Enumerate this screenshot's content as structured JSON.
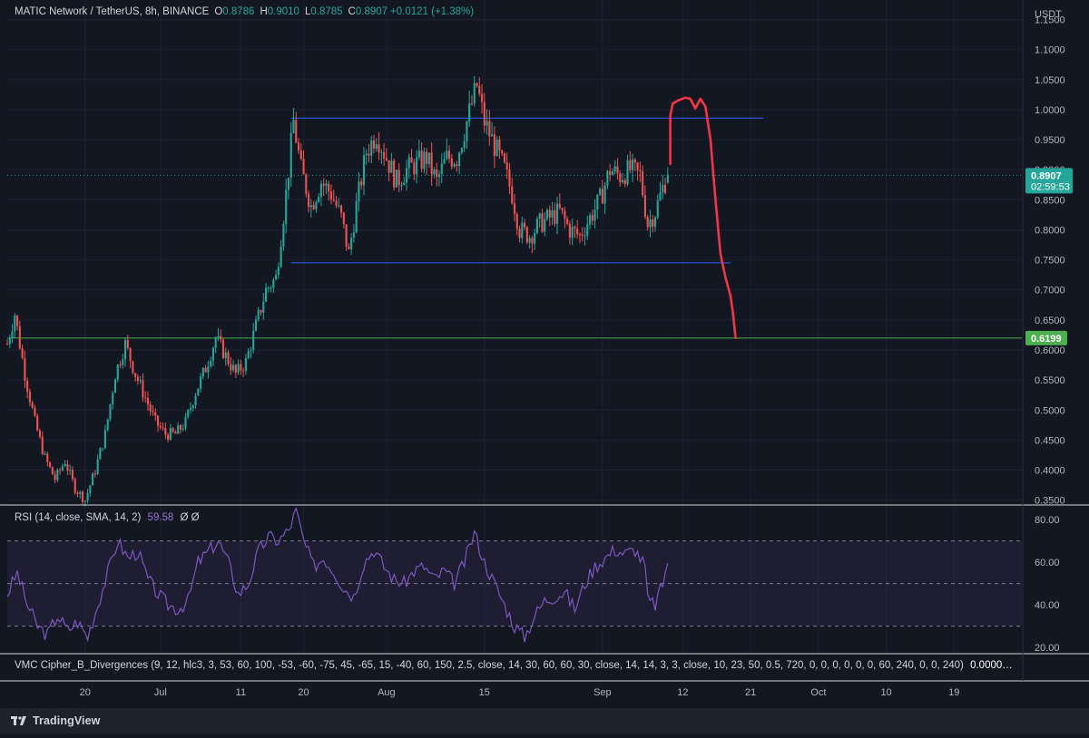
{
  "legend": {
    "symbol": "MATIC Network / TetherUS, 8h, BINANCE",
    "o_label": "O",
    "o_value": "0.8786",
    "h_label": "H",
    "h_value": "0.9010",
    "l_label": "L",
    "l_value": "0.8785",
    "c_label": "C",
    "c_value": "0.8907",
    "change": "+0.0121 (+1.38%)"
  },
  "price_axis": {
    "currency": "USDT",
    "last_price_label": "0.8907",
    "countdown_label": "02:59:53",
    "support_label": "0.6199"
  },
  "rsi_legend": {
    "label": "RSI (14, close, SMA, 14, 2)",
    "value": "59.58",
    "extra": "Ø  Ø"
  },
  "vmc_legend": {
    "label": "VMC Cipher_B_Divergences (9, 12, hlc3, 3, 53, 60, 100, -53, -60, -75, 45, -65, 15, -40, 60, 150, 2.5, close, 14, 30, 60, 60, 30, close, 14, 14, 3, 3, close, 10, 23, 50, 0.5, 720, 0, 0, 0, 0, 0, 0, 60, 240, 0, 0, 240)",
    "value": "0.0000…"
  },
  "footer": {
    "brand": "TradingView"
  },
  "colors": {
    "background": "#131722",
    "up": "#26a69a",
    "down": "#ef5350",
    "channel": "#2962ff",
    "support": "#4caf50",
    "drawing": "#f23645",
    "rsi": "#7e57c2"
  },
  "chart_data": {
    "type": "candlestick",
    "title": "MATIC Network / TetherUS, 8h, BINANCE",
    "ylabel": "USDT",
    "ylim": [
      0.3435,
      1.1825
    ],
    "y_ticks": [
      "1.1500",
      "1.1000",
      "1.0500",
      "1.0000",
      "0.9500",
      "0.9000",
      "0.8500",
      "0.8000",
      "0.7500",
      "0.7000",
      "0.6500",
      "0.6000",
      "0.5500",
      "0.5000",
      "0.4500",
      "0.4000",
      "0.3500"
    ],
    "y_tick_values": [
      1.15,
      1.1,
      1.05,
      1.0,
      0.95,
      0.9,
      0.85,
      0.8,
      0.75,
      0.7,
      0.65,
      0.6,
      0.55,
      0.5,
      0.45,
      0.4,
      0.35
    ],
    "x_ticks": [
      {
        "label": "20",
        "bar": 31
      },
      {
        "label": "Jul",
        "bar": 61
      },
      {
        "label": "11",
        "bar": 93
      },
      {
        "label": "20",
        "bar": 118
      },
      {
        "label": "Aug",
        "bar": 151
      },
      {
        "label": "15",
        "bar": 190
      },
      {
        "label": "Sep",
        "bar": 237
      },
      {
        "label": "12",
        "bar": 269
      },
      {
        "label": "21",
        "bar": 296
      },
      {
        "label": "Oct",
        "bar": 323
      },
      {
        "label": "10",
        "bar": 350
      },
      {
        "label": "19",
        "bar": 377
      }
    ],
    "x_range_bars": [
      0,
      404
    ],
    "price_path": [
      [
        0,
        0.61
      ],
      [
        3,
        0.66
      ],
      [
        7,
        0.56
      ],
      [
        11,
        0.48
      ],
      [
        15,
        0.42
      ],
      [
        19,
        0.385
      ],
      [
        23,
        0.415
      ],
      [
        27,
        0.37
      ],
      [
        31,
        0.35
      ],
      [
        35,
        0.4
      ],
      [
        39,
        0.46
      ],
      [
        43,
        0.56
      ],
      [
        47,
        0.61
      ],
      [
        51,
        0.56
      ],
      [
        55,
        0.52
      ],
      [
        59,
        0.48
      ],
      [
        63,
        0.46
      ],
      [
        67,
        0.46
      ],
      [
        71,
        0.48
      ],
      [
        75,
        0.53
      ],
      [
        79,
        0.57
      ],
      [
        83,
        0.62
      ],
      [
        87,
        0.59
      ],
      [
        91,
        0.56
      ],
      [
        95,
        0.58
      ],
      [
        99,
        0.64
      ],
      [
        103,
        0.7
      ],
      [
        107,
        0.72
      ],
      [
        111,
        0.86
      ],
      [
        114,
        0.98
      ],
      [
        117,
        0.9
      ],
      [
        121,
        0.84
      ],
      [
        125,
        0.88
      ],
      [
        129,
        0.86
      ],
      [
        133,
        0.82
      ],
      [
        136,
        0.76
      ],
      [
        139,
        0.84
      ],
      [
        143,
        0.93
      ],
      [
        147,
        0.96
      ],
      [
        151,
        0.92
      ],
      [
        155,
        0.88
      ],
      [
        159,
        0.9
      ],
      [
        163,
        0.91
      ],
      [
        167,
        0.92
      ],
      [
        171,
        0.88
      ],
      [
        175,
        0.92
      ],
      [
        179,
        0.92
      ],
      [
        183,
        0.98
      ],
      [
        187,
        1.04
      ],
      [
        190,
        0.98
      ],
      [
        194,
        0.94
      ],
      [
        198,
        0.9
      ],
      [
        201,
        0.86
      ],
      [
        204,
        0.8
      ],
      [
        208,
        0.79
      ],
      [
        212,
        0.81
      ],
      [
        216,
        0.82
      ],
      [
        220,
        0.83
      ],
      [
        224,
        0.8
      ],
      [
        228,
        0.79
      ],
      [
        232,
        0.82
      ],
      [
        236,
        0.85
      ],
      [
        240,
        0.9
      ],
      [
        244,
        0.89
      ],
      [
        248,
        0.9
      ],
      [
        252,
        0.89
      ],
      [
        255,
        0.81
      ],
      [
        258,
        0.83
      ],
      [
        261,
        0.87
      ],
      [
        263,
        0.8907
      ]
    ],
    "last_bar_index": 263,
    "ohlc_last": {
      "open": 0.8786,
      "high": 0.901,
      "low": 0.8785,
      "close": 0.8907
    },
    "horizontal_levels": [
      {
        "name": "channel-top",
        "value": 0.986,
        "from_bar": 113,
        "to_bar": 301
      },
      {
        "name": "channel-bottom",
        "value": 0.745,
        "from_bar": 113,
        "to_bar": 288
      },
      {
        "name": "support",
        "value": 0.6199,
        "from_bar": 0,
        "to_bar": 404
      }
    ],
    "projection_path": [
      [
        264,
        0.91
      ],
      [
        264,
        0.99
      ],
      [
        265,
        1.01
      ],
      [
        267,
        1.015
      ],
      [
        270,
        1.02
      ],
      [
        272,
        1.018
      ],
      [
        274,
        1.002
      ],
      [
        276,
        1.018
      ],
      [
        278,
        1.005
      ],
      [
        280,
        0.95
      ],
      [
        282,
        0.85
      ],
      [
        284,
        0.76
      ],
      [
        286,
        0.72
      ],
      [
        288,
        0.69
      ],
      [
        289,
        0.66
      ],
      [
        290,
        0.62
      ]
    ],
    "rsi": {
      "ylim": [
        17.5,
        86
      ],
      "ticks": [
        "80.00",
        "60.00",
        "40.00",
        "20.00"
      ],
      "tick_values": [
        80,
        60,
        40,
        20
      ],
      "band_upper": 70,
      "band_mid": 50,
      "band_lower": 30,
      "last": 59.58,
      "path": [
        [
          0,
          45
        ],
        [
          4,
          55
        ],
        [
          8,
          40
        ],
        [
          12,
          30
        ],
        [
          16,
          26
        ],
        [
          20,
          35
        ],
        [
          24,
          28
        ],
        [
          28,
          32
        ],
        [
          32,
          25
        ],
        [
          36,
          40
        ],
        [
          40,
          55
        ],
        [
          44,
          70
        ],
        [
          48,
          62
        ],
        [
          52,
          65
        ],
        [
          56,
          52
        ],
        [
          60,
          45
        ],
        [
          64,
          40
        ],
        [
          68,
          38
        ],
        [
          72,
          42
        ],
        [
          76,
          60
        ],
        [
          80,
          65
        ],
        [
          84,
          70
        ],
        [
          88,
          60
        ],
        [
          92,
          45
        ],
        [
          96,
          50
        ],
        [
          100,
          65
        ],
        [
          104,
          72
        ],
        [
          108,
          70
        ],
        [
          112,
          75
        ],
        [
          115,
          84
        ],
        [
          118,
          70
        ],
        [
          122,
          58
        ],
        [
          126,
          62
        ],
        [
          130,
          56
        ],
        [
          134,
          48
        ],
        [
          138,
          44
        ],
        [
          142,
          60
        ],
        [
          146,
          66
        ],
        [
          150,
          58
        ],
        [
          154,
          52
        ],
        [
          158,
          50
        ],
        [
          162,
          56
        ],
        [
          166,
          58
        ],
        [
          170,
          52
        ],
        [
          174,
          56
        ],
        [
          178,
          50
        ],
        [
          182,
          60
        ],
        [
          186,
          74
        ],
        [
          190,
          60
        ],
        [
          194,
          50
        ],
        [
          198,
          40
        ],
        [
          202,
          30
        ],
        [
          206,
          25
        ],
        [
          210,
          35
        ],
        [
          214,
          42
        ],
        [
          218,
          44
        ],
        [
          222,
          46
        ],
        [
          226,
          38
        ],
        [
          230,
          50
        ],
        [
          234,
          58
        ],
        [
          238,
          62
        ],
        [
          242,
          66
        ],
        [
          246,
          64
        ],
        [
          250,
          66
        ],
        [
          254,
          58
        ],
        [
          255,
          42
        ],
        [
          258,
          40
        ],
        [
          261,
          50
        ],
        [
          263,
          59.58
        ]
      ]
    }
  }
}
